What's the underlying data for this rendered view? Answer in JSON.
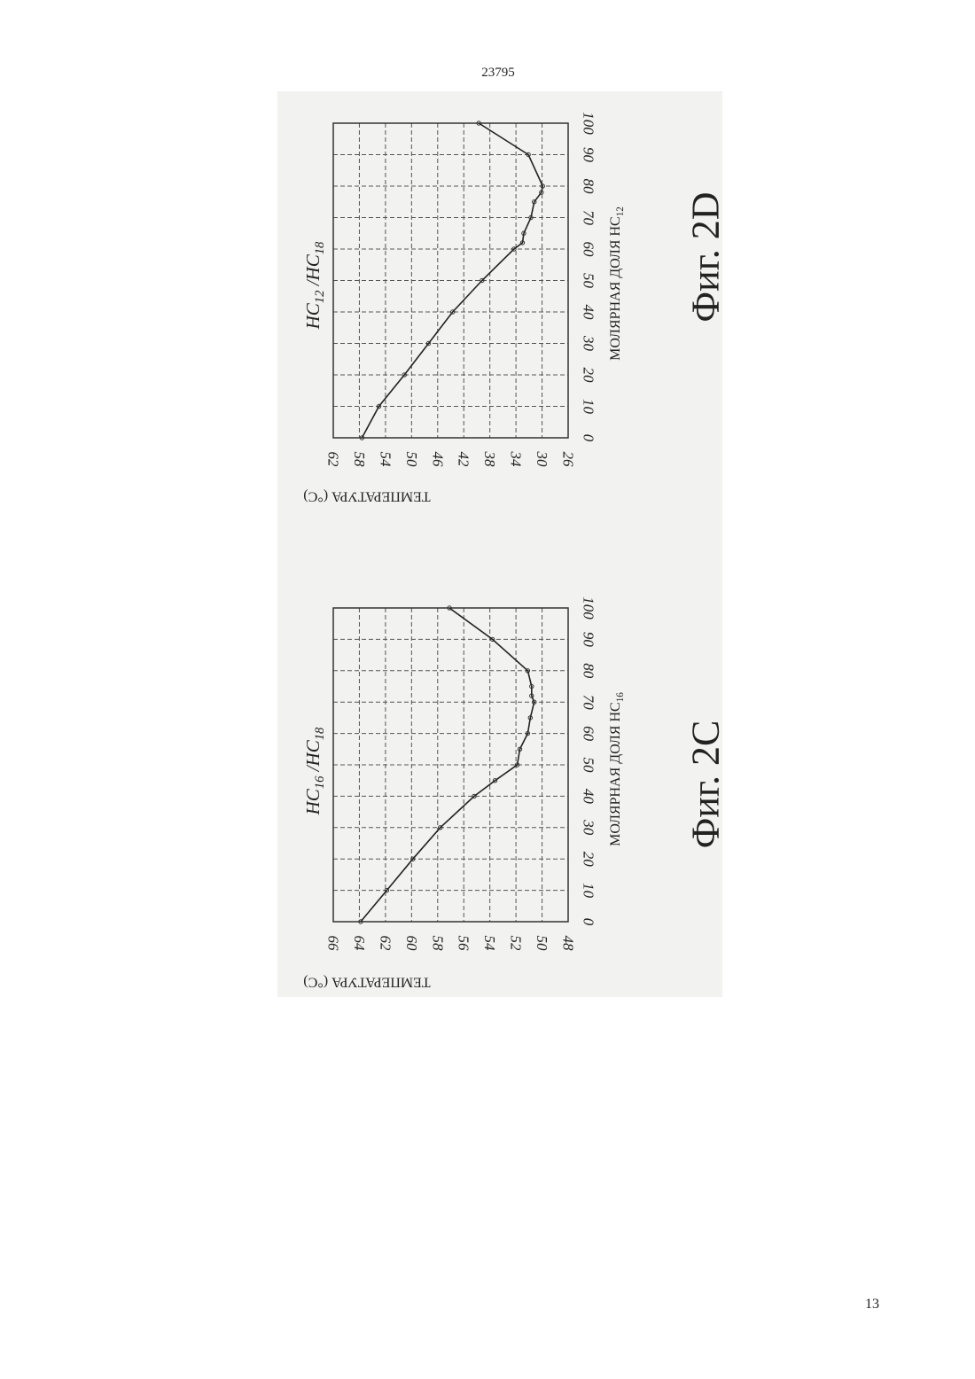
{
  "page": {
    "doc_number": "23795",
    "page_number": "13"
  },
  "chart_data": [
    {
      "type": "line",
      "id": "2C",
      "title": "Фиг. 2С",
      "system_label_main": "HC",
      "system_label_sub1": "16",
      "system_label_sep": " /HC",
      "system_label_sub2": "18",
      "xlabel_main": "МОЛЯРНАЯ ДОЛЯ НС",
      "xlabel_sub": "16",
      "ylabel": "ТЕМПЕРАТУРА (°С)",
      "xlim": [
        0,
        100
      ],
      "ylim": [
        48,
        66
      ],
      "x_ticks": [
        "0",
        "10",
        "20",
        "30",
        "40",
        "50",
        "60",
        "70",
        "80",
        "90",
        "100"
      ],
      "y_ticks": [
        "66",
        "64",
        "62",
        "60",
        "58",
        "56",
        "54",
        "52",
        "50",
        "48"
      ],
      "grid": true,
      "series": [
        {
          "x": [
            0,
            10,
            20,
            30,
            40,
            45,
            50,
            55,
            60,
            65,
            70,
            72,
            75,
            80,
            90,
            100
          ],
          "y": [
            63.9,
            61.9,
            59.9,
            57.8,
            55.2,
            53.6,
            51.9,
            51.7,
            51.1,
            50.9,
            50.6,
            50.8,
            50.8,
            51.1,
            53.8,
            57.1
          ]
        }
      ]
    },
    {
      "type": "line",
      "id": "2D",
      "title": "Фиг. 2D",
      "system_label_main": "HC",
      "system_label_sub1": "12",
      "system_label_sep": " /HC",
      "system_label_sub2": "18",
      "xlabel_main": "МОЛЯРНАЯ ДОЛЯ НС",
      "xlabel_sub": "12",
      "ylabel": "ТЕМПЕРАТУРА (°С)",
      "xlim": [
        0,
        100
      ],
      "ylim": [
        26,
        62
      ],
      "x_ticks": [
        "0",
        "10",
        "20",
        "30",
        "40",
        "50",
        "60",
        "70",
        "80",
        "90",
        "100"
      ],
      "y_ticks": [
        "62",
        "58",
        "54",
        "50",
        "46",
        "42",
        "38",
        "34",
        "30",
        "26"
      ],
      "grid": true,
      "series": [
        {
          "x": [
            0,
            10,
            20,
            30,
            40,
            50,
            60,
            62,
            65,
            70,
            75,
            78,
            80,
            90,
            100
          ],
          "y": [
            57.6,
            55.0,
            51.1,
            47.4,
            43.7,
            39.2,
            34.3,
            33.0,
            32.8,
            31.7,
            31.2,
            30.1,
            29.9,
            32.1,
            39.7
          ]
        }
      ]
    }
  ]
}
